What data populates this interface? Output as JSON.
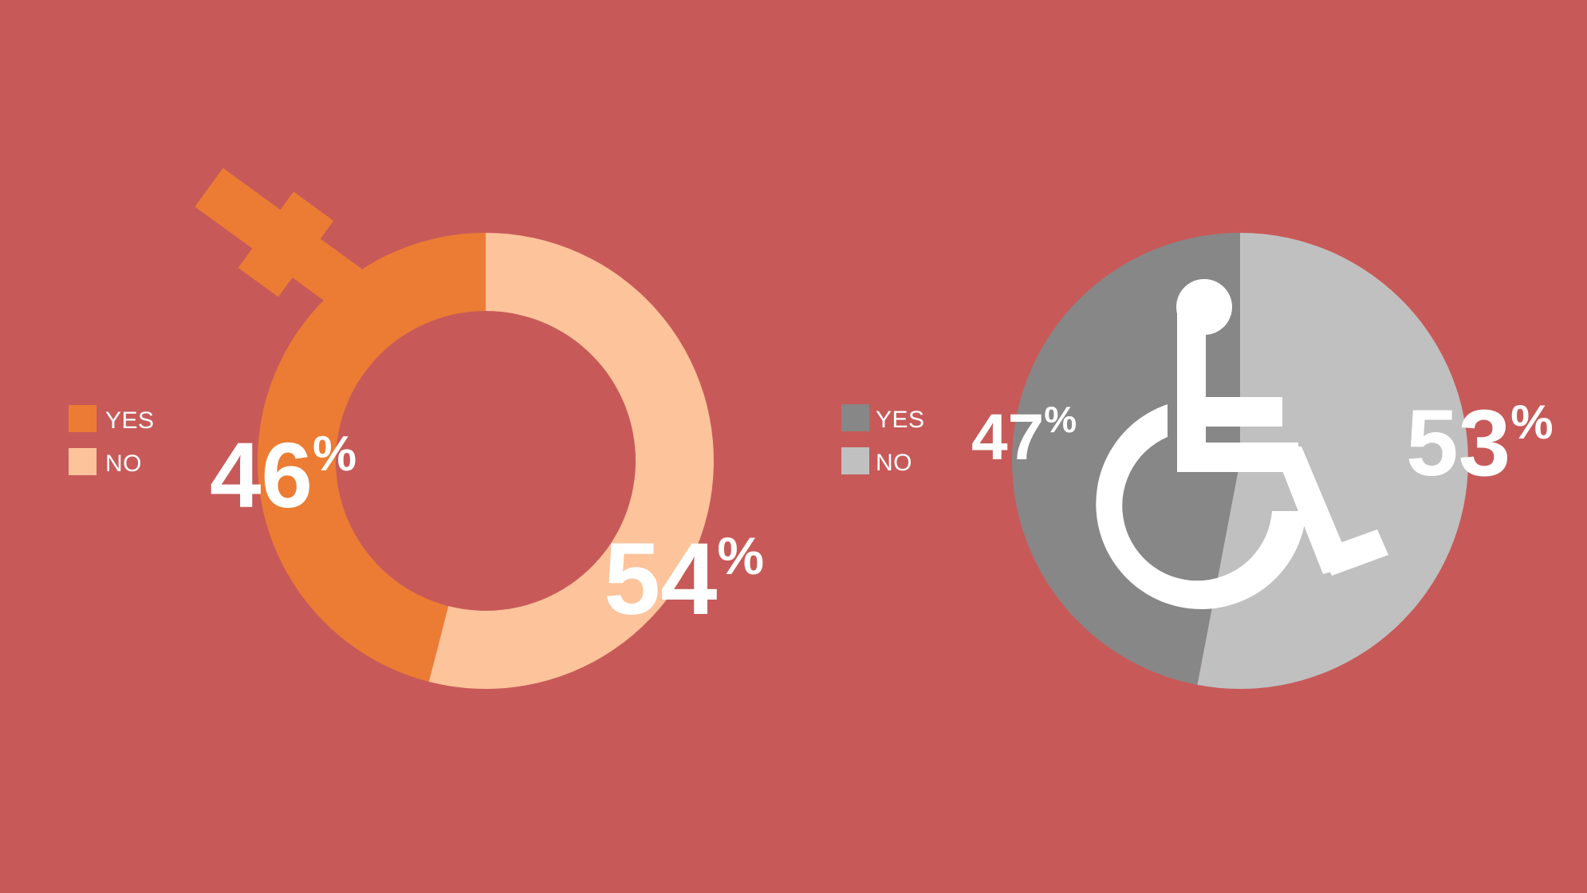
{
  "colors": {
    "background": "#c75a59",
    "chart1_yes": "#ec7c33",
    "chart1_no": "#fdc39b",
    "chart2_yes": "#878787",
    "chart2_no": "#c0c0c0",
    "label": "#ffffff"
  },
  "icons": {
    "chart1": "female-symbol-icon",
    "chart2": "wheelchair-icon"
  },
  "chart_data": [
    {
      "type": "pie",
      "style": "donut",
      "categories": [
        "YES",
        "NO"
      ],
      "values": [
        46,
        54
      ],
      "labels": [
        {
          "value": "46",
          "unit": "%"
        },
        {
          "value": "54",
          "unit": "%"
        }
      ],
      "legend": {
        "position": "left",
        "entries": [
          {
            "label": "YES",
            "color": "#ec7c33"
          },
          {
            "label": "NO",
            "color": "#fdc39b"
          }
        ]
      }
    },
    {
      "type": "pie",
      "style": "full",
      "categories": [
        "YES",
        "NO"
      ],
      "values": [
        47,
        53
      ],
      "labels": [
        {
          "value": "47",
          "unit": "%"
        },
        {
          "value": "53",
          "unit": "%"
        }
      ],
      "legend": {
        "position": "left",
        "entries": [
          {
            "label": "YES",
            "color": "#878787"
          },
          {
            "label": "NO",
            "color": "#c0c0c0"
          }
        ]
      }
    }
  ]
}
